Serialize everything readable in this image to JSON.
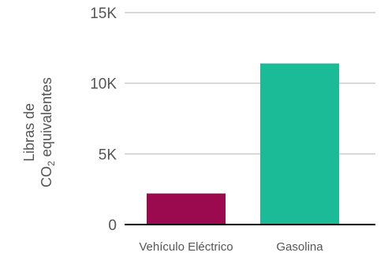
{
  "chart_data": {
    "type": "bar",
    "categories": [
      "Vehículo Eléctrico",
      "Gasolina"
    ],
    "values": [
      2200,
      11400
    ],
    "colors": [
      "#9b0a4e",
      "#1cbb97"
    ],
    "ylim": [
      0,
      15000
    ],
    "yticks": [
      0,
      5000,
      10000,
      15000
    ],
    "ytick_labels": [
      "0",
      "5K",
      "10K",
      "15K"
    ],
    "ylabel": {
      "line1": "Libras de",
      "line2_main": "CO",
      "line2_sub": "2",
      "line2_rest": " equivalentes"
    },
    "grid": true
  }
}
